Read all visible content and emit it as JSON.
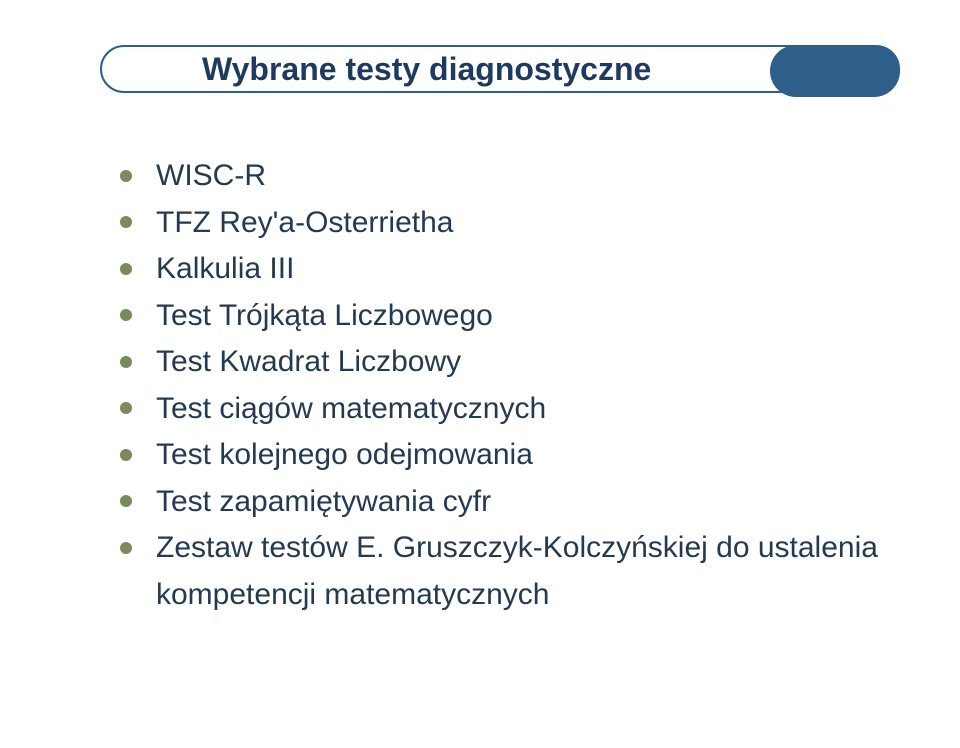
{
  "title": "Wybrane testy diagnostyczne",
  "colors": {
    "accent": "#2e5f8a",
    "bullet": "#7a8a5a",
    "title_text": "#1e3a5f",
    "body_text": "#233a50",
    "link": "#233a50",
    "background": "#ffffff"
  },
  "typography": {
    "title_fontsize": 32,
    "body_fontsize": 30,
    "font_family": "Arial"
  },
  "items": [
    {
      "label": "WISC-R"
    },
    {
      "label": "TFZ Rey'a-Osterrietha"
    },
    {
      "label": "Kalkulia III"
    },
    {
      "label": "Test Trójkąta Liczbowego"
    },
    {
      "label": "Test Kwadrat Liczbowy"
    },
    {
      "label": "Test ciągów matematycznych"
    },
    {
      "label": "Test kolejnego odejmowania"
    },
    {
      "label": "Test zapamiętywania cyfr"
    },
    {
      "label": "Zestaw testów E. Gruszczyk-Kolczyńskiej do ustalenia kompetencji matematycznych"
    }
  ]
}
